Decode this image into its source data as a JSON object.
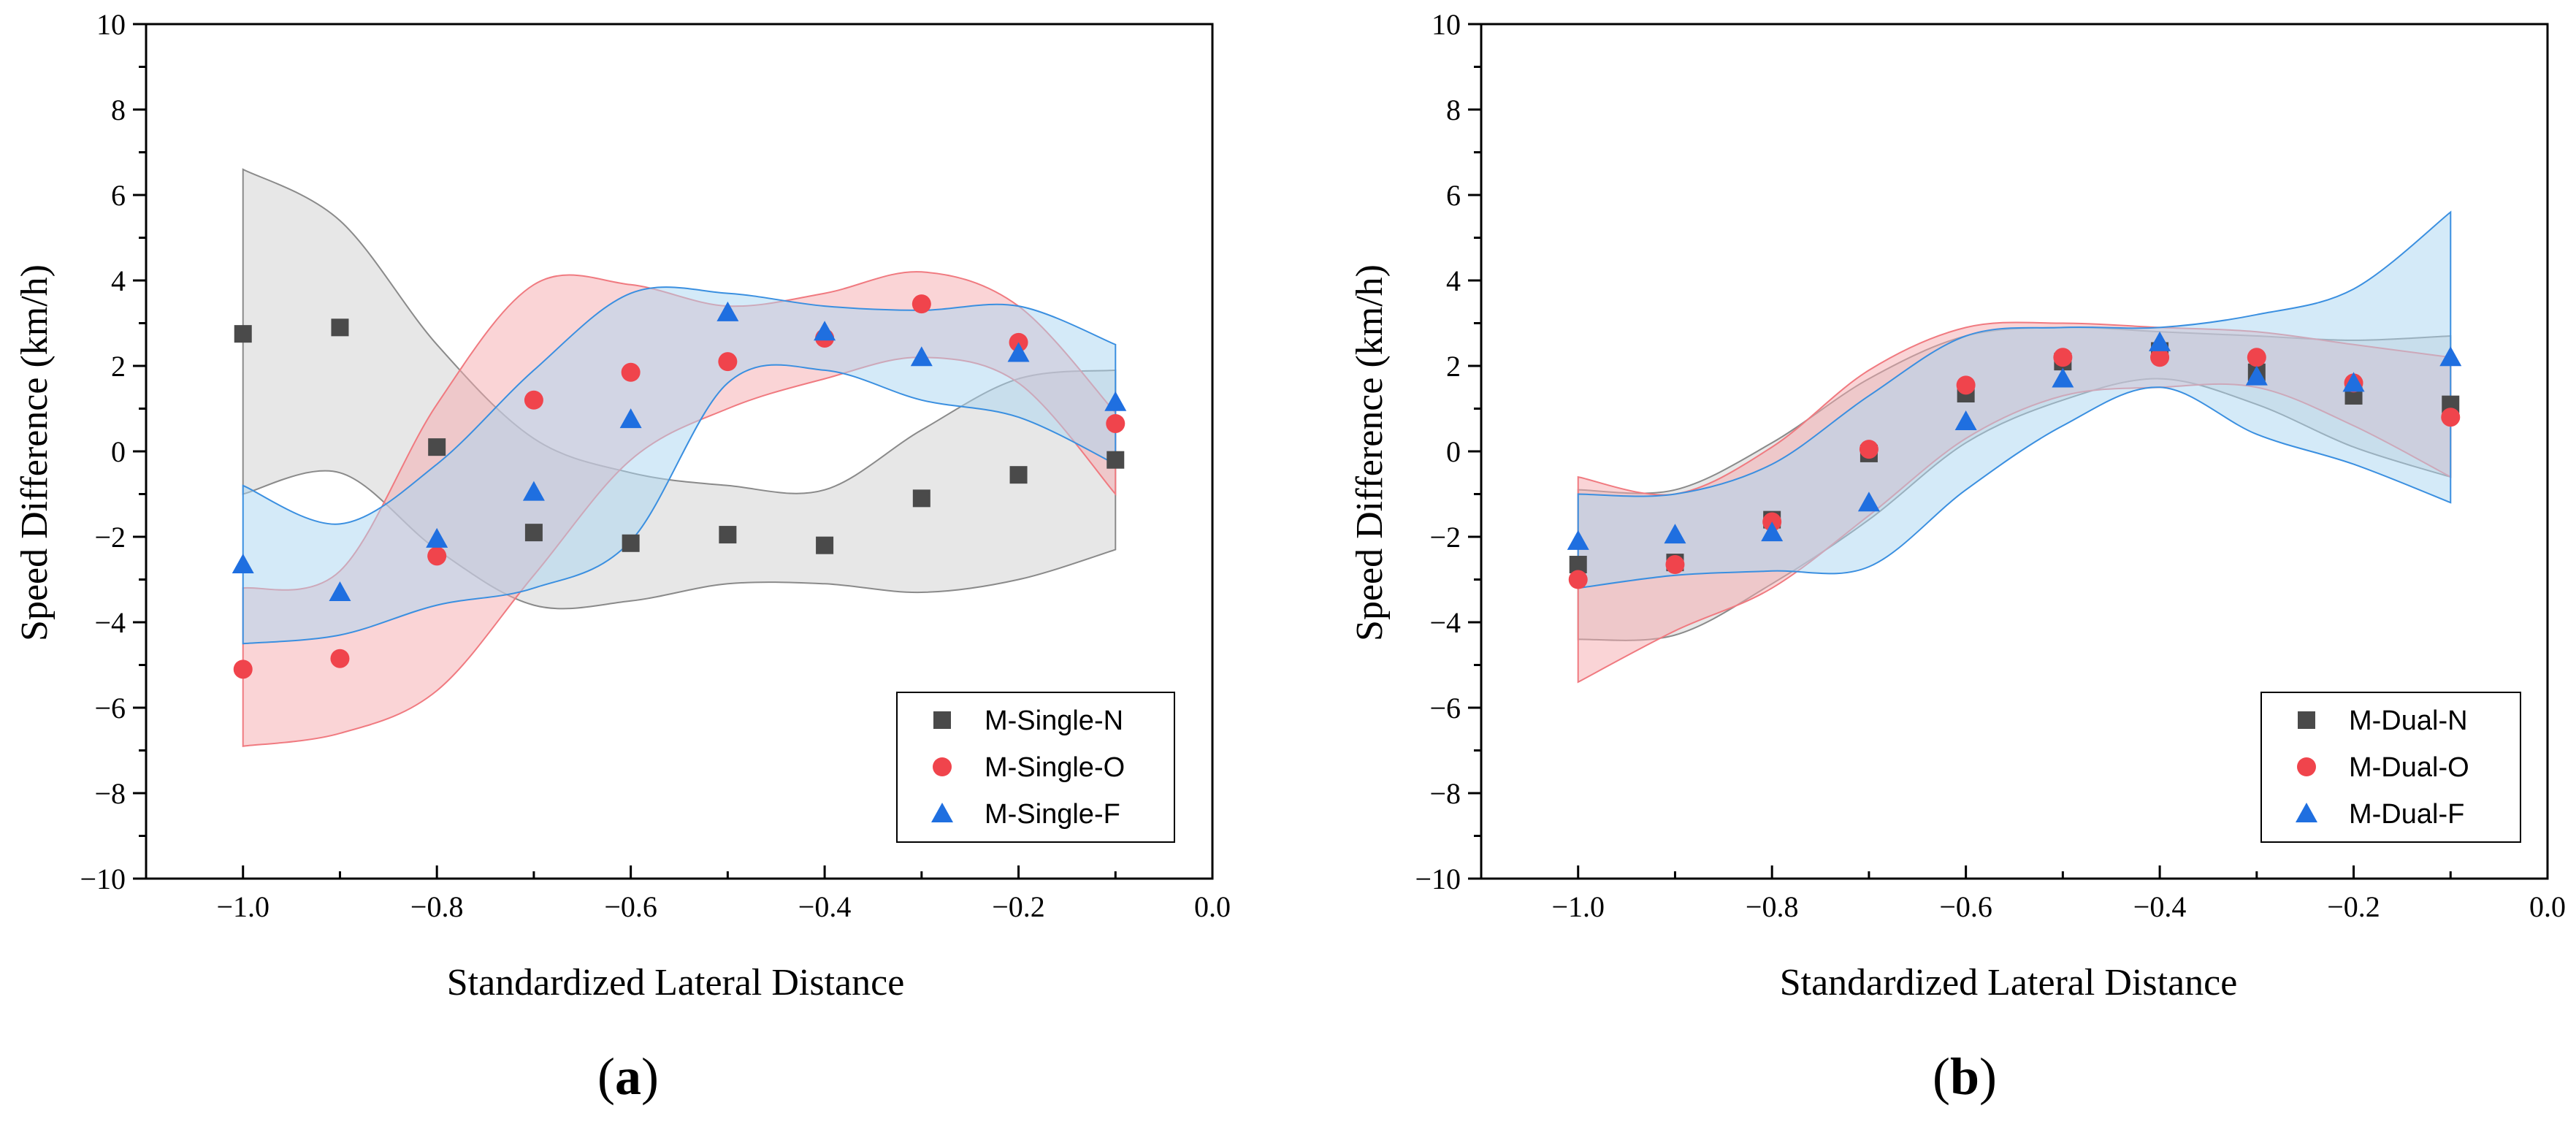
{
  "colors": {
    "N": "#4a4a4a",
    "O": "#f0444c",
    "F": "#1f6fe0",
    "band_N_fill": "#cfcfcf",
    "band_O_fill": "#f6a9ad",
    "band_F_fill": "#a9d6f2",
    "band_N_stroke": "#8a8a8a",
    "band_O_stroke": "#f07a80",
    "band_F_stroke": "#3a8fe0"
  },
  "chart_data": [
    {
      "type": "scatter",
      "panel_label": "a",
      "xlabel": "Standardized Lateral Distance",
      "ylabel": "Speed Difference (km/h)",
      "xlim": [
        -1.1,
        0.0
      ],
      "ylim": [
        -10,
        10
      ],
      "xticks": [
        -1.0,
        -0.8,
        -0.6,
        -0.4,
        -0.2,
        0.0
      ],
      "xtick_labels": [
        "−1.0",
        "−0.8",
        "−0.6",
        "−0.4",
        "−0.2",
        "0.0"
      ],
      "yticks": [
        -10,
        -8,
        -6,
        -4,
        -2,
        0,
        2,
        4,
        6,
        8,
        10
      ],
      "ytick_labels": [
        "−10",
        "−8",
        "−6",
        "−4",
        "−2",
        "0",
        "2",
        "4",
        "6",
        "8",
        "10"
      ],
      "legend_position": "lower-right",
      "x": [
        -1.0,
        -0.9,
        -0.8,
        -0.7,
        -0.6,
        -0.5,
        -0.4,
        -0.3,
        -0.2,
        -0.1
      ],
      "series": [
        {
          "name": "M-Single-N",
          "key": "N",
          "marker": "square",
          "values": [
            2.75,
            2.9,
            0.1,
            -1.9,
            -2.15,
            -1.95,
            -2.2,
            -1.1,
            -0.55,
            -0.2
          ],
          "band_upper": [
            6.6,
            5.4,
            2.5,
            0.3,
            -0.5,
            -0.8,
            -0.9,
            0.5,
            1.7,
            1.9
          ],
          "band_lower": [
            -1.0,
            -0.5,
            -2.3,
            -3.6,
            -3.5,
            -3.1,
            -3.1,
            -3.3,
            -3.0,
            -2.3
          ]
        },
        {
          "name": "M-Single-O",
          "key": "O",
          "marker": "circle",
          "values": [
            -5.1,
            -4.85,
            -2.45,
            1.2,
            1.85,
            2.1,
            2.65,
            3.45,
            2.55,
            0.65
          ],
          "band_upper": [
            -3.2,
            -2.8,
            1.1,
            3.9,
            3.9,
            3.4,
            3.7,
            4.2,
            3.4,
            0.9
          ],
          "band_lower": [
            -6.9,
            -6.6,
            -5.6,
            -2.9,
            -0.2,
            1.0,
            1.7,
            2.2,
            1.6,
            -1.0
          ]
        },
        {
          "name": "M-Single-F",
          "key": "F",
          "marker": "triangle",
          "values": [
            -2.65,
            -3.3,
            -2.05,
            -0.95,
            0.75,
            3.25,
            2.8,
            2.2,
            2.3,
            1.15
          ],
          "band_upper": [
            -0.8,
            -1.7,
            -0.3,
            1.9,
            3.7,
            3.7,
            3.4,
            3.3,
            3.4,
            2.5
          ],
          "band_lower": [
            -4.5,
            -4.3,
            -3.6,
            -3.2,
            -2.1,
            1.6,
            1.9,
            1.2,
            0.8,
            -0.3
          ]
        }
      ]
    },
    {
      "type": "scatter",
      "panel_label": "b",
      "xlabel": "Standardized Lateral Distance",
      "ylabel": "Speed Difference (km/h)",
      "xlim": [
        -1.1,
        0.0
      ],
      "ylim": [
        -10,
        10
      ],
      "xticks": [
        -1.0,
        -0.8,
        -0.6,
        -0.4,
        -0.2,
        0.0
      ],
      "xtick_labels": [
        "−1.0",
        "−0.8",
        "−0.6",
        "−0.4",
        "−0.2",
        "0.0"
      ],
      "yticks": [
        -10,
        -8,
        -6,
        -4,
        -2,
        0,
        2,
        4,
        6,
        8,
        10
      ],
      "ytick_labels": [
        "−10",
        "−8",
        "−6",
        "−4",
        "−2",
        "0",
        "2",
        "4",
        "6",
        "8",
        "10"
      ],
      "legend_position": "lower-right",
      "x": [
        -1.0,
        -0.9,
        -0.8,
        -0.7,
        -0.6,
        -0.5,
        -0.4,
        -0.3,
        -0.2,
        -0.1
      ],
      "series": [
        {
          "name": "M-Dual-N",
          "key": "N",
          "marker": "square",
          "values": [
            -2.65,
            -2.6,
            -1.6,
            -0.05,
            1.35,
            2.1,
            2.35,
            1.85,
            1.3,
            1.1
          ],
          "band_upper": [
            -0.9,
            -0.9,
            0.2,
            1.7,
            2.7,
            2.9,
            2.8,
            2.7,
            2.6,
            2.7
          ],
          "band_lower": [
            -4.4,
            -4.3,
            -3.1,
            -1.6,
            0.2,
            1.2,
            1.7,
            1.1,
            0.1,
            -0.6
          ]
        },
        {
          "name": "M-Dual-O",
          "key": "O",
          "marker": "circle",
          "values": [
            -3.0,
            -2.65,
            -1.65,
            0.05,
            1.55,
            2.2,
            2.2,
            2.2,
            1.6,
            0.8
          ],
          "band_upper": [
            -0.6,
            -1.0,
            0.1,
            1.9,
            2.9,
            3.0,
            2.9,
            2.8,
            2.5,
            2.2
          ],
          "band_lower": [
            -5.4,
            -4.2,
            -3.2,
            -1.5,
            0.3,
            1.3,
            1.5,
            1.5,
            0.6,
            -0.6
          ]
        },
        {
          "name": "M-Dual-F",
          "key": "F",
          "marker": "triangle",
          "values": [
            -2.1,
            -1.95,
            -1.9,
            -1.2,
            0.7,
            1.7,
            2.55,
            1.75,
            1.6,
            2.2
          ],
          "band_upper": [
            -1.0,
            -1.0,
            -0.3,
            1.3,
            2.7,
            2.9,
            2.9,
            3.2,
            3.8,
            5.6
          ],
          "band_lower": [
            -3.2,
            -2.9,
            -2.8,
            -2.7,
            -0.9,
            0.6,
            1.5,
            0.4,
            -0.3,
            -1.2
          ]
        }
      ]
    }
  ]
}
